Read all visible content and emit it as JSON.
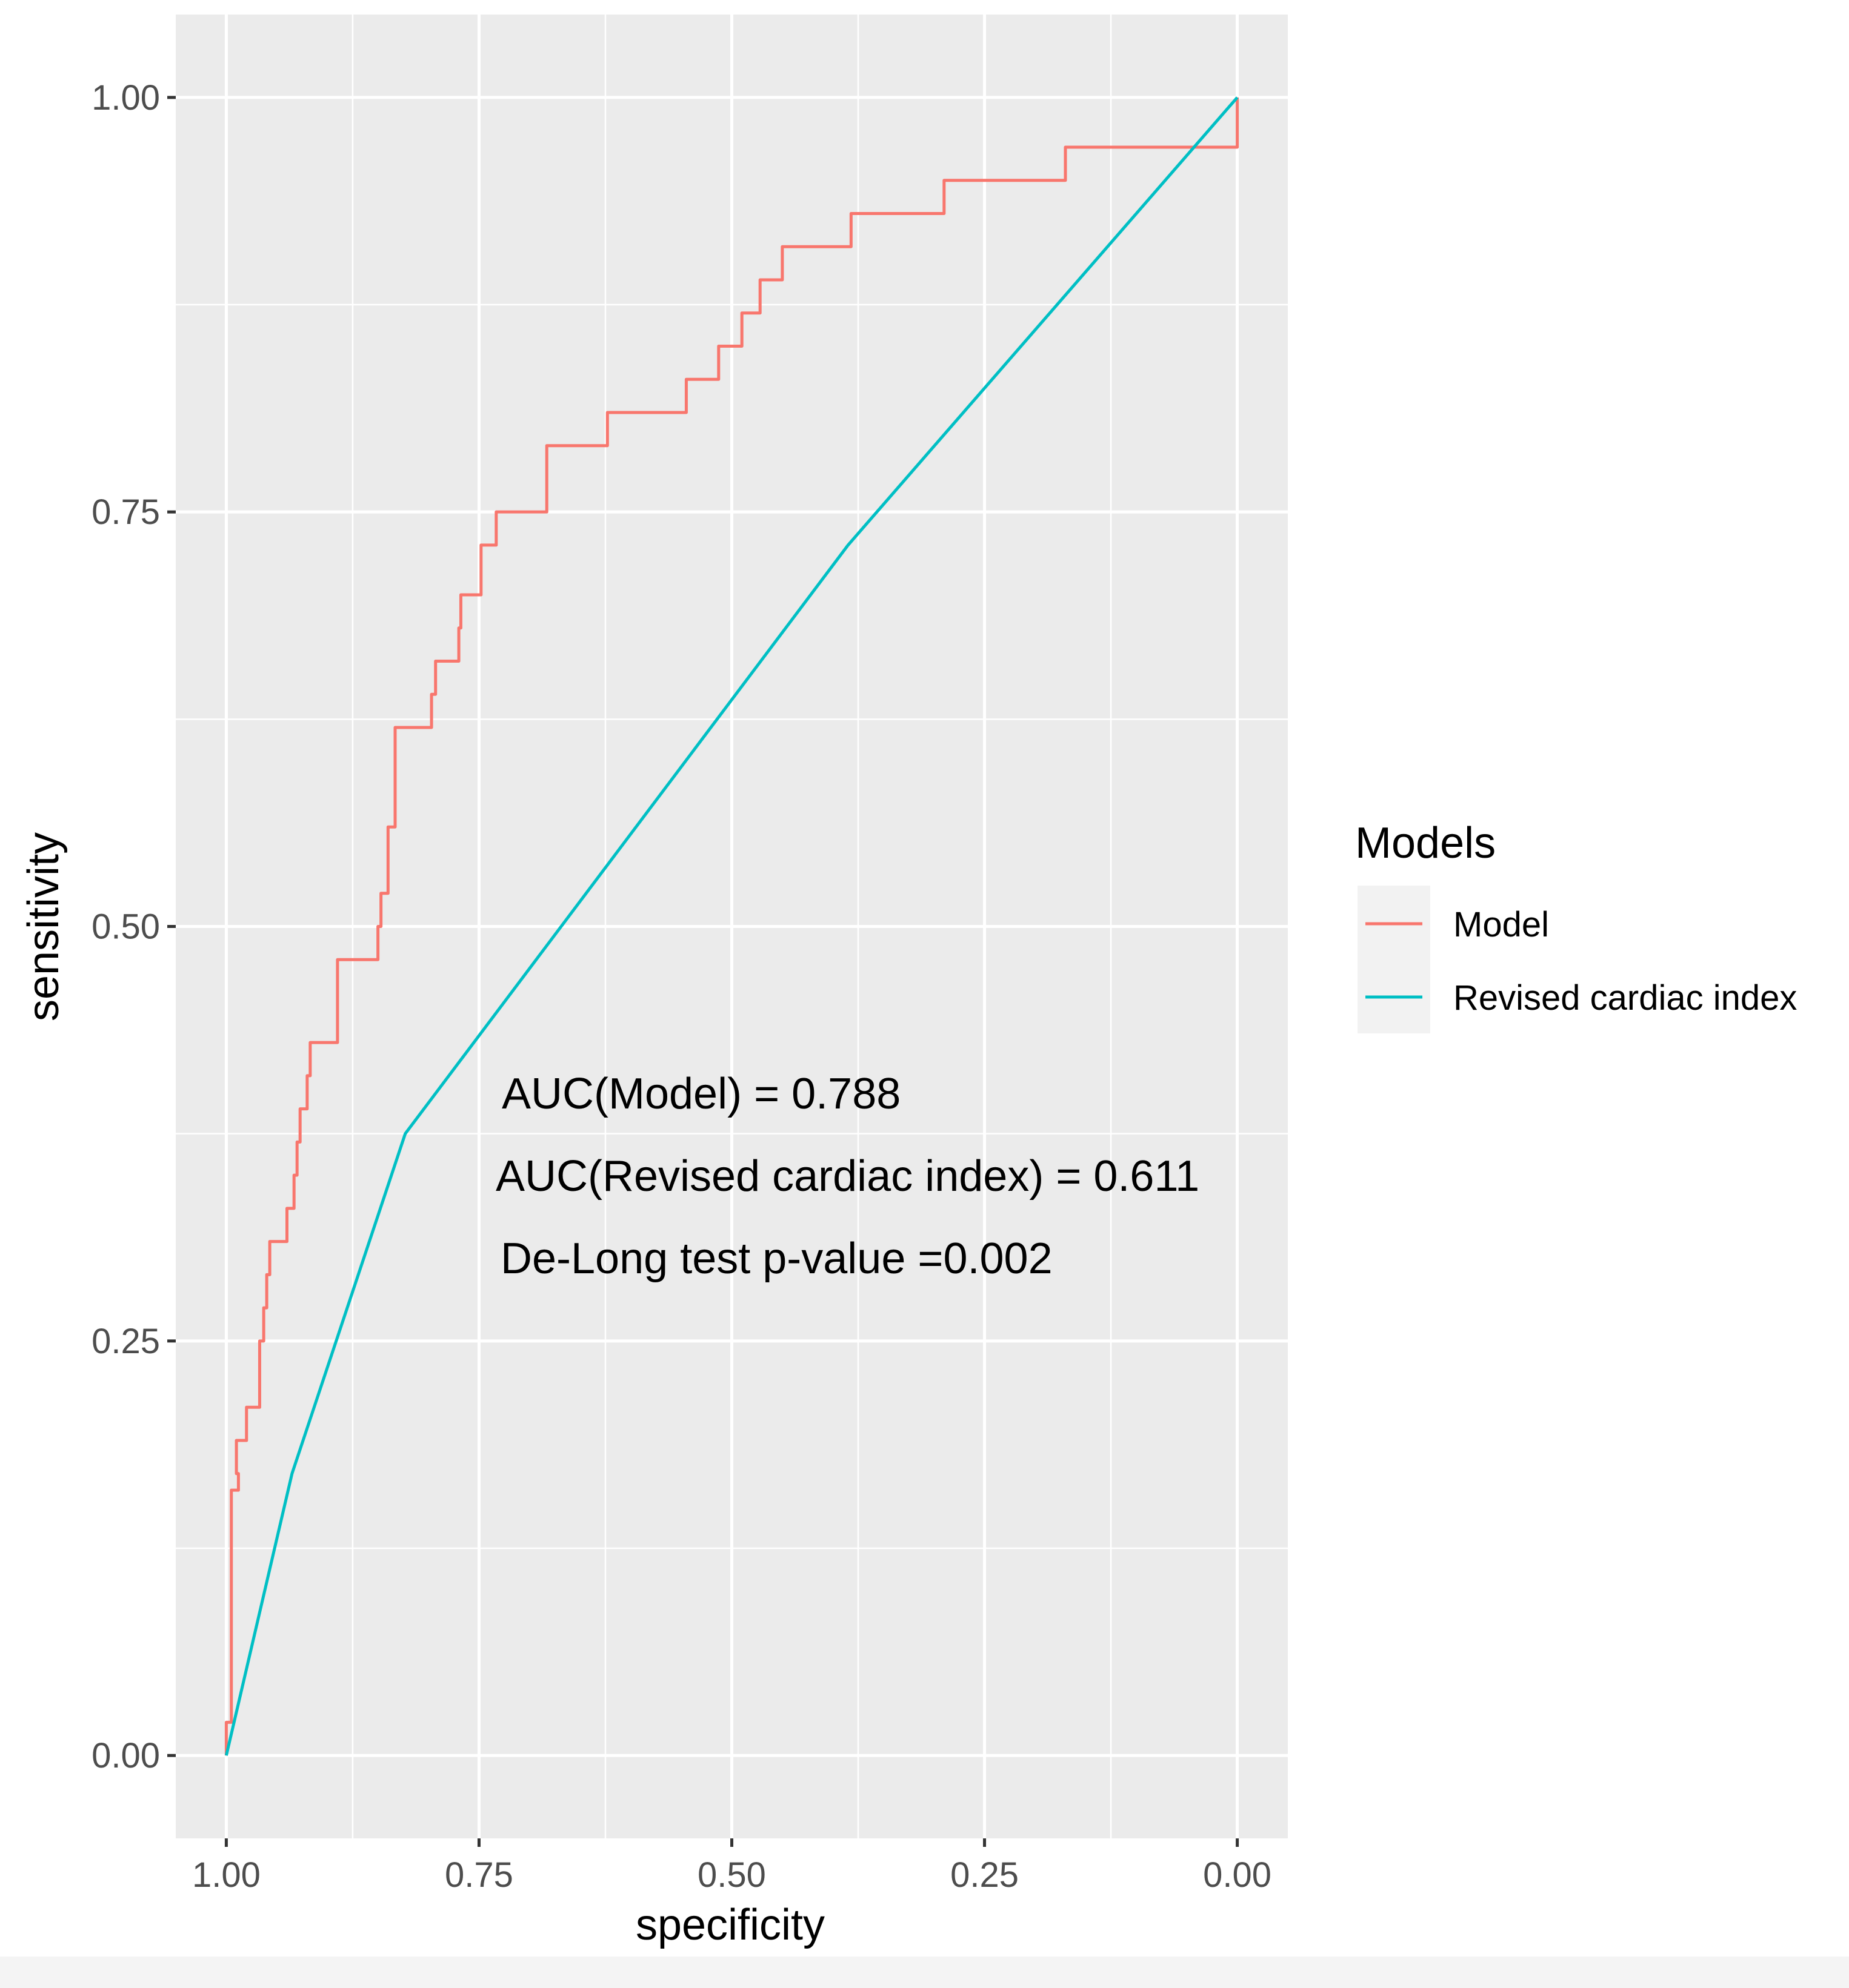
{
  "chart_data": {
    "type": "line",
    "title": "",
    "xlabel": "specificity",
    "ylabel": "sensitivity",
    "x_reversed": true,
    "xlim": [
      1.05,
      -0.05
    ],
    "ylim": [
      -0.05,
      1.05
    ],
    "x_ticks": [
      1.0,
      0.75,
      0.5,
      0.25,
      0.0
    ],
    "x_tick_labels": [
      "1.00",
      "0.75",
      "0.50",
      "0.25",
      "0.00"
    ],
    "y_ticks": [
      0.0,
      0.25,
      0.5,
      0.75,
      1.0
    ],
    "y_tick_labels": [
      "0.00",
      "0.25",
      "0.50",
      "0.75",
      "1.00"
    ],
    "grid": true,
    "legend": {
      "title": "Models",
      "position": "right"
    },
    "series": [
      {
        "name": "Model",
        "color": "#f8766d",
        "step": true,
        "points": [
          [
            1.0,
            0.0
          ],
          [
            1.0,
            0.02
          ],
          [
            0.995,
            0.02
          ],
          [
            0.995,
            0.16
          ],
          [
            0.988,
            0.16
          ],
          [
            0.988,
            0.17
          ],
          [
            0.99,
            0.17
          ],
          [
            0.99,
            0.19
          ],
          [
            0.98,
            0.19
          ],
          [
            0.98,
            0.21
          ],
          [
            0.967,
            0.21
          ],
          [
            0.967,
            0.25
          ],
          [
            0.963,
            0.25
          ],
          [
            0.963,
            0.27
          ],
          [
            0.96,
            0.27
          ],
          [
            0.96,
            0.29
          ],
          [
            0.957,
            0.29
          ],
          [
            0.957,
            0.31
          ],
          [
            0.94,
            0.31
          ],
          [
            0.94,
            0.33
          ],
          [
            0.933,
            0.33
          ],
          [
            0.933,
            0.35
          ],
          [
            0.93,
            0.35
          ],
          [
            0.93,
            0.37
          ],
          [
            0.927,
            0.37
          ],
          [
            0.927,
            0.39
          ],
          [
            0.92,
            0.39
          ],
          [
            0.92,
            0.41
          ],
          [
            0.917,
            0.41
          ],
          [
            0.917,
            0.43
          ],
          [
            0.89,
            0.43
          ],
          [
            0.89,
            0.48
          ],
          [
            0.85,
            0.48
          ],
          [
            0.85,
            0.5
          ],
          [
            0.847,
            0.5
          ],
          [
            0.847,
            0.52
          ],
          [
            0.84,
            0.52
          ],
          [
            0.84,
            0.56
          ],
          [
            0.833,
            0.56
          ],
          [
            0.833,
            0.62
          ],
          [
            0.797,
            0.62
          ],
          [
            0.797,
            0.64
          ],
          [
            0.793,
            0.64
          ],
          [
            0.793,
            0.66
          ],
          [
            0.77,
            0.66
          ],
          [
            0.77,
            0.68
          ],
          [
            0.768,
            0.68
          ],
          [
            0.768,
            0.7
          ],
          [
            0.748,
            0.7
          ],
          [
            0.748,
            0.73
          ],
          [
            0.733,
            0.73
          ],
          [
            0.733,
            0.75
          ],
          [
            0.683,
            0.75
          ],
          [
            0.683,
            0.79
          ],
          [
            0.623,
            0.79
          ],
          [
            0.623,
            0.81
          ],
          [
            0.545,
            0.81
          ],
          [
            0.545,
            0.83
          ],
          [
            0.513,
            0.83
          ],
          [
            0.513,
            0.85
          ],
          [
            0.49,
            0.85
          ],
          [
            0.49,
            0.87
          ],
          [
            0.472,
            0.87
          ],
          [
            0.472,
            0.89
          ],
          [
            0.45,
            0.89
          ],
          [
            0.45,
            0.91
          ],
          [
            0.382,
            0.91
          ],
          [
            0.382,
            0.93
          ],
          [
            0.29,
            0.93
          ],
          [
            0.29,
            0.95
          ],
          [
            0.17,
            0.95
          ],
          [
            0.17,
            0.97
          ],
          [
            0.0,
            0.97
          ],
          [
            0.0,
            1.0
          ]
        ]
      },
      {
        "name": "Revised cardiac index",
        "color": "#00bfc4",
        "step": false,
        "points": [
          [
            1.0,
            0.0
          ],
          [
            0.935,
            0.17
          ],
          [
            0.823,
            0.375
          ],
          [
            0.385,
            0.73
          ],
          [
            0.0,
            1.0
          ]
        ]
      }
    ],
    "annotations": [
      "AUC(Model) = 0.788",
      "AUC(Revised cardiac index) = 0.611",
      "De-Long test p-value =0.002"
    ]
  }
}
